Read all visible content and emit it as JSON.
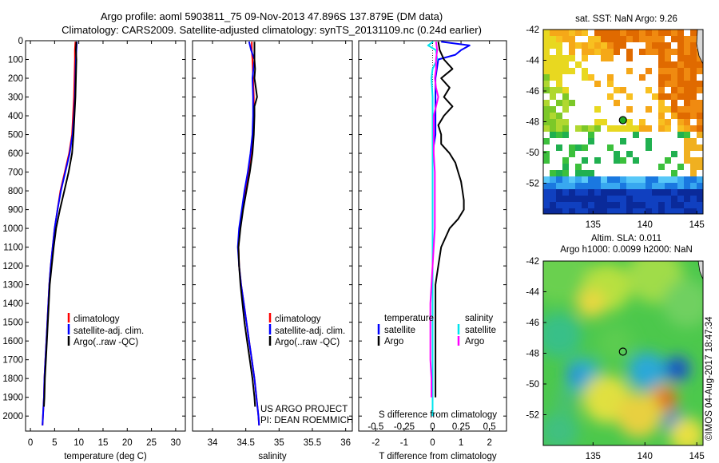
{
  "title": {
    "line1": "Argo profile: aoml 5903811_75 09-Nov-2013 47.896S 137.879E (DM data)",
    "line2": "Climatology: CARS2009. Satellite-adjusted climatology: synTS_20131109.nc (0.24d earlier)"
  },
  "colors": {
    "climatology": "#ff0000",
    "satellite": "#0000ff",
    "argo": "#000000",
    "sal_satellite": "#00e5ee",
    "sal_argo": "#ff00ff"
  },
  "chart_data": [
    {
      "id": "temperature",
      "type": "line",
      "xlabel": "temperature (deg C)",
      "ylabel": "",
      "xlim": [
        -1,
        32
      ],
      "ylim": [
        2080,
        0
      ],
      "xticks": [
        0,
        5,
        10,
        15,
        20,
        25,
        30
      ],
      "xtick_labels": [
        "0",
        "5",
        "10",
        "15",
        "20",
        "25",
        "30"
      ],
      "yticks": [
        0,
        100,
        200,
        300,
        400,
        500,
        600,
        700,
        800,
        900,
        1000,
        1100,
        1200,
        1300,
        1400,
        1500,
        1600,
        1700,
        1800,
        1900,
        2000
      ],
      "ytick_labels": [
        "0",
        "100",
        "200",
        "300",
        "400",
        "500",
        "600",
        "700",
        "800",
        "900",
        "1000",
        "1100",
        "1200",
        "1300",
        "1400",
        "1500",
        "1600",
        "1700",
        "1800",
        "1900",
        "2000"
      ],
      "legend": [
        "climatology",
        "satellite-adj. clim.",
        "Argo(..raw -QC)"
      ],
      "series": [
        {
          "name": "climatology",
          "color": "climatology",
          "depth": [
            5,
            50,
            100,
            200,
            300,
            400,
            500,
            600,
            700,
            800,
            900,
            1000,
            1100,
            1200,
            1300,
            1400,
            1500,
            1600,
            1700,
            1800,
            1900,
            2000,
            2050
          ],
          "values": [
            9.3,
            9.2,
            9.2,
            9.1,
            9.0,
            8.8,
            8.6,
            8.0,
            7.1,
            6.2,
            5.6,
            5.0,
            4.6,
            4.2,
            3.9,
            3.7,
            3.5,
            3.3,
            3.1,
            2.9,
            2.8,
            2.6,
            2.5
          ]
        },
        {
          "name": "satellite-adj. clim.",
          "color": "satellite",
          "depth": [
            5,
            50,
            100,
            200,
            300,
            400,
            500,
            600,
            700,
            800,
            900,
            1000,
            1100,
            1200,
            1300,
            1400,
            1500,
            1600,
            1700,
            1800,
            1900,
            2000,
            2050
          ],
          "values": [
            9.6,
            9.5,
            9.4,
            9.3,
            9.2,
            9.0,
            8.7,
            8.1,
            7.2,
            6.3,
            5.6,
            5.0,
            4.6,
            4.2,
            3.9,
            3.7,
            3.5,
            3.3,
            3.1,
            2.9,
            2.8,
            2.6,
            2.5
          ]
        },
        {
          "name": "Argo(..raw -QC)",
          "color": "argo",
          "depth": [
            5,
            50,
            100,
            200,
            300,
            400,
            500,
            600,
            700,
            800,
            900,
            1000,
            1100,
            1200,
            1300,
            1400,
            1500,
            1600,
            1700,
            1800,
            1900,
            1950
          ],
          "values": [
            9.5,
            9.4,
            9.5,
            9.4,
            9.3,
            9.1,
            8.9,
            8.6,
            7.9,
            7.0,
            6.1,
            5.3,
            4.8,
            4.4,
            4.0,
            3.8,
            3.6,
            3.4,
            3.2,
            3.0,
            2.9,
            2.8
          ]
        }
      ]
    },
    {
      "id": "salinity",
      "type": "line",
      "xlabel": "salinity",
      "xlim": [
        33.7,
        36.1
      ],
      "ylim": [
        2080,
        0
      ],
      "xticks": [
        34,
        34.5,
        35,
        35.5,
        36
      ],
      "xtick_labels": [
        "34",
        "34.5",
        "35",
        "35.5",
        "36"
      ],
      "legend": [
        "climatology",
        "satellite-adj. clim.",
        "Argo(..raw -QC)"
      ],
      "annotation": [
        "US ARGO PROJECT",
        "PI: DEAN ROEMMICH"
      ],
      "series": [
        {
          "name": "climatology",
          "color": "climatology",
          "depth": [
            5,
            50,
            100,
            200,
            300,
            400,
            500,
            600,
            700,
            800,
            900,
            1000,
            1100,
            1200,
            1300,
            1400,
            1500,
            1600,
            1700,
            1800,
            1900,
            2000,
            2050
          ],
          "values": [
            34.59,
            34.59,
            34.6,
            34.61,
            34.62,
            34.62,
            34.61,
            34.58,
            34.54,
            34.49,
            34.45,
            34.41,
            34.39,
            34.4,
            34.43,
            34.47,
            34.51,
            34.55,
            34.59,
            34.63,
            34.66,
            34.69,
            34.7
          ]
        },
        {
          "name": "satellite-adj. clim.",
          "color": "satellite",
          "depth": [
            5,
            50,
            100,
            200,
            300,
            400,
            500,
            600,
            700,
            800,
            900,
            1000,
            1100,
            1200,
            1300,
            1400,
            1500,
            1600,
            1700,
            1800,
            1900,
            2000,
            2050
          ],
          "values": [
            34.55,
            34.58,
            34.63,
            34.6,
            34.61,
            34.61,
            34.6,
            34.57,
            34.53,
            34.48,
            34.44,
            34.4,
            34.38,
            34.4,
            34.43,
            34.47,
            34.51,
            34.55,
            34.59,
            34.63,
            34.66,
            34.69,
            34.7
          ]
        },
        {
          "name": "Argo(..raw -QC)",
          "color": "argo",
          "depth": [
            5,
            50,
            100,
            150,
            200,
            250,
            300,
            350,
            400,
            500,
            600,
            700,
            800,
            900,
            1000,
            1100,
            1200,
            1300,
            1400,
            1500,
            1600,
            1700,
            1800,
            1900,
            1950
          ],
          "values": [
            34.63,
            34.63,
            34.63,
            34.64,
            34.63,
            34.65,
            34.67,
            34.63,
            34.63,
            34.62,
            34.6,
            34.56,
            34.51,
            34.46,
            34.42,
            34.39,
            34.4,
            34.42,
            34.45,
            34.48,
            34.52,
            34.56,
            34.6,
            34.63,
            34.64
          ]
        }
      ]
    },
    {
      "id": "difference",
      "type": "line",
      "xlabel": "T difference from climatology",
      "top_label": "S difference from climatology",
      "xlim": [
        -2.6,
        2.6
      ],
      "ylim": [
        2080,
        0
      ],
      "xticks": [
        -2,
        -1,
        0,
        1,
        2
      ],
      "xtick_labels": [
        "-2",
        "-1",
        "0",
        "1",
        "2"
      ],
      "top_ticks": [
        -0.5,
        -0.25,
        0,
        0.25,
        0.5
      ],
      "top_tick_labels": [
        "-0.5",
        "-0.25",
        "0",
        "0.25",
        "0.5"
      ],
      "legend_headers": [
        "temperature",
        "salinity"
      ],
      "legend": [
        "satellite",
        "Argo",
        "satellite",
        "Argo"
      ],
      "series": [
        {
          "name": "T satellite",
          "color": "satellite",
          "depth": [
            5,
            25,
            50,
            75,
            100,
            200,
            300,
            400,
            500,
            600,
            700,
            800,
            900,
            1000,
            1100,
            1200,
            1300,
            1400,
            1500,
            1600,
            1700,
            1800,
            1900,
            2000
          ],
          "values": [
            0.3,
            1.3,
            1.0,
            0.8,
            0.2,
            0.1,
            0.1,
            0.1,
            0.1,
            0.0,
            0.0,
            0.0,
            0.0,
            0.0,
            0.0,
            0.0,
            0.0,
            0.0,
            0.0,
            0.0,
            0.0,
            0.0,
            0.0,
            0.0
          ]
        },
        {
          "name": "T Argo",
          "color": "argo",
          "depth": [
            5,
            50,
            100,
            150,
            200,
            250,
            300,
            350,
            400,
            450,
            500,
            550,
            600,
            650,
            700,
            750,
            800,
            850,
            900,
            950,
            1000,
            1100,
            1200,
            1300,
            1400,
            1500,
            1600,
            1700,
            1800,
            1900
          ],
          "values": [
            0.2,
            0.25,
            0.4,
            0.7,
            0.3,
            0.6,
            0.4,
            0.7,
            0.4,
            0.2,
            0.3,
            0.3,
            0.6,
            0.8,
            0.9,
            1.0,
            1.05,
            1.1,
            1.1,
            0.9,
            0.6,
            0.3,
            0.2,
            0.1,
            0.1,
            0.1,
            0.1,
            0.1,
            0.1,
            0.1
          ]
        },
        {
          "name": "S satellite",
          "color": "sal_satellite",
          "depth": [
            5,
            25,
            50,
            100,
            150,
            200,
            300,
            400,
            500,
            600,
            700,
            800,
            900,
            1000,
            1100,
            1200,
            1300,
            1400,
            1500,
            1600,
            1700,
            1800,
            1900,
            2000
          ],
          "values": [
            0.005,
            -0.04,
            0.03,
            0.04,
            0.0,
            -0.01,
            0.0,
            0.0,
            0.0,
            0.0,
            0.0,
            0.0,
            0.0,
            0.0,
            0.0,
            0.0,
            0.0,
            0.0,
            0.0,
            0.0,
            0.0,
            0.0,
            0.0,
            0.0
          ]
        },
        {
          "name": "S Argo",
          "color": "sal_argo",
          "depth": [
            5,
            50,
            100,
            150,
            200,
            250,
            300,
            350,
            400,
            500,
            600,
            700,
            800,
            900,
            1000,
            1100,
            1200,
            1300,
            1400,
            1500,
            1600,
            1700,
            1800,
            1900
          ],
          "values": [
            0.03,
            0.04,
            0.03,
            0.03,
            0.02,
            0.03,
            0.05,
            0.03,
            0.01,
            0.01,
            0.01,
            0.02,
            0.02,
            0.02,
            0.02,
            0.01,
            0.0,
            -0.01,
            -0.02,
            -0.02,
            -0.02,
            -0.02,
            -0.01,
            -0.01
          ]
        }
      ]
    },
    {
      "id": "sst_map",
      "type": "heatmap",
      "title": "sat. SST: NaN Argo: 9.26",
      "xlim": [
        130.2,
        145.6
      ],
      "ylim": [
        -54,
        -42
      ],
      "xticks": [
        135,
        140,
        145
      ],
      "xtick_labels": [
        "135",
        "140",
        "145"
      ],
      "yticks": [
        -42,
        -44,
        -46,
        -48,
        -50,
        -52
      ],
      "ytick_labels": [
        "-42",
        "-44",
        "-46",
        "-48",
        "-50",
        "-52"
      ],
      "marker": {
        "lon": 137.879,
        "lat": -47.896
      }
    },
    {
      "id": "sla_map",
      "type": "heatmap",
      "title": "Altim. SLA: 0.011",
      "subtitle": "Argo h1000: 0.0099 h2000: NaN",
      "xlim": [
        130.2,
        145.6
      ],
      "ylim": [
        -54,
        -42
      ],
      "xticks": [
        135,
        140,
        145
      ],
      "xtick_labels": [
        "135",
        "140",
        "145"
      ],
      "yticks": [
        -42,
        -44,
        -46,
        -48,
        -50,
        -52
      ],
      "ytick_labels": [
        "-42",
        "-44",
        "-46",
        "-48",
        "-50",
        "-52"
      ],
      "marker": {
        "lon": 137.879,
        "lat": -47.896
      }
    }
  ],
  "credit": "©IMOS 04-Aug-2017 18:47:34"
}
